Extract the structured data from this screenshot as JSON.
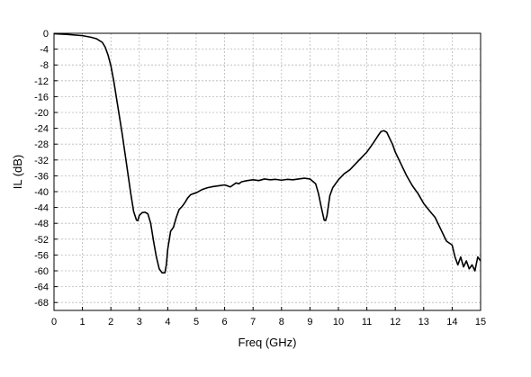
{
  "chart_data": {
    "type": "line",
    "title": "",
    "xlabel": "Freq (GHz)",
    "ylabel": "IL (dB)",
    "xlim": [
      0,
      15
    ],
    "ylim": [
      -70,
      0
    ],
    "xticks": [
      0,
      1,
      2,
      3,
      4,
      5,
      6,
      7,
      8,
      9,
      10,
      11,
      12,
      13,
      14,
      15
    ],
    "xtick_labels": [
      "0",
      "1",
      "2",
      "3",
      "4",
      "5",
      "6",
      "7",
      "8",
      "9",
      "10",
      "11",
      "12",
      "13",
      "14",
      "15"
    ],
    "yticks": [
      0,
      -4,
      -8,
      -12,
      -16,
      -20,
      -24,
      -28,
      -32,
      -36,
      -40,
      -44,
      -48,
      -52,
      -56,
      -60,
      -64,
      -68
    ],
    "ytick_labels": [
      "0",
      "-4",
      "-8",
      "-12",
      "-16",
      "-20",
      "-24",
      "-28",
      "-32",
      "-36",
      "-40",
      "-44",
      "-48",
      "-52",
      "-56",
      "-60",
      "-64",
      "-68"
    ],
    "grid": true,
    "line_color": "#000000",
    "series": [
      {
        "x": [
          0,
          0.5,
          1.0,
          1.3,
          1.5,
          1.7,
          1.8,
          1.9,
          2.0,
          2.1,
          2.2,
          2.3,
          2.4,
          2.5,
          2.6,
          2.7,
          2.8,
          2.9,
          2.95,
          3.0,
          3.1,
          3.2,
          3.3,
          3.4,
          3.5,
          3.6,
          3.7,
          3.8,
          3.9,
          3.95,
          4.0,
          4.1,
          4.2,
          4.3,
          4.4,
          4.5,
          4.6,
          4.7,
          4.8,
          4.9,
          5.0,
          5.2,
          5.4,
          5.6,
          5.8,
          6.0,
          6.2,
          6.4,
          6.5,
          6.6,
          6.8,
          7.0,
          7.2,
          7.4,
          7.6,
          7.8,
          8.0,
          8.2,
          8.4,
          8.6,
          8.8,
          9.0,
          9.2,
          9.3,
          9.4,
          9.5,
          9.55,
          9.6,
          9.7,
          9.8,
          10.0,
          10.2,
          10.4,
          10.6,
          10.8,
          11.0,
          11.2,
          11.4,
          11.5,
          11.6,
          11.7,
          11.8,
          11.9,
          12.0,
          12.2,
          12.4,
          12.6,
          12.8,
          13.0,
          13.2,
          13.4,
          13.6,
          13.8,
          14.0,
          14.1,
          14.2,
          14.3,
          14.4,
          14.5,
          14.6,
          14.7,
          14.8,
          14.9,
          15.0
        ],
        "y": [
          -0.1,
          -0.3,
          -0.6,
          -1.0,
          -1.4,
          -2.3,
          -3.5,
          -5.5,
          -8.2,
          -12.0,
          -16.5,
          -21.0,
          -25.5,
          -30.5,
          -35.5,
          -40.5,
          -45.0,
          -47.2,
          -47.3,
          -46.0,
          -45.3,
          -45.2,
          -45.6,
          -48.0,
          -52.5,
          -56.5,
          -59.5,
          -60.5,
          -60.5,
          -58.5,
          -54.5,
          -50.0,
          -49.0,
          -46.5,
          -44.5,
          -43.8,
          -42.8,
          -41.6,
          -40.8,
          -40.5,
          -40.3,
          -39.5,
          -39.0,
          -38.7,
          -38.5,
          -38.3,
          -38.8,
          -37.8,
          -38.0,
          -37.5,
          -37.2,
          -37.0,
          -37.2,
          -36.8,
          -37.0,
          -36.9,
          -37.1,
          -36.9,
          -37.0,
          -36.8,
          -36.6,
          -36.8,
          -38.0,
          -40.5,
          -44.0,
          -47.2,
          -47.3,
          -46.0,
          -41.0,
          -39.0,
          -37.0,
          -35.5,
          -34.5,
          -33.0,
          -31.5,
          -30.0,
          -28.0,
          -25.8,
          -24.8,
          -24.6,
          -25.0,
          -26.5,
          -28.0,
          -30.0,
          -33.0,
          -36.0,
          -38.5,
          -40.5,
          -43.0,
          -44.8,
          -46.5,
          -49.5,
          -52.5,
          -53.5,
          -56.5,
          -58.5,
          -56.5,
          -59.0,
          -57.5,
          -59.5,
          -58.5,
          -60.0,
          -56.5,
          -57.5
        ]
      }
    ]
  }
}
